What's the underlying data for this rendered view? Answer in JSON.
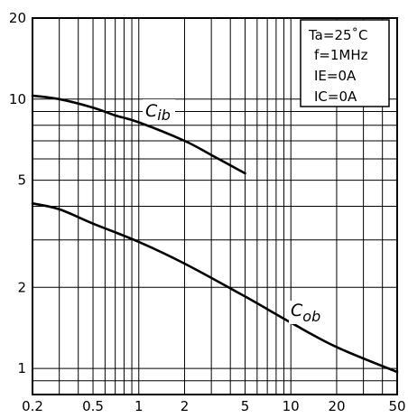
{
  "chart_data": {
    "type": "line",
    "x_scale": "log",
    "y_scale": "log",
    "xlim": [
      0.2,
      50
    ],
    "ylim": [
      0.8,
      20
    ],
    "x_tick_labels": [
      "0.2",
      "0.5",
      "1",
      "2",
      "5",
      "10",
      "20",
      "50"
    ],
    "y_tick_labels": [
      "1",
      "2",
      "5",
      "10",
      "20"
    ],
    "grid": true,
    "conditions": [
      "Ta=25˚C",
      "f=1MHz",
      "IE=0A",
      "IC=0A"
    ],
    "series": [
      {
        "name": "Cib",
        "label_main": "C",
        "label_sub": "ib",
        "x": [
          0.2,
          0.3,
          0.5,
          0.7,
          1,
          2,
          3,
          5
        ],
        "y": [
          10.3,
          10.0,
          9.3,
          8.7,
          8.2,
          7.0,
          6.2,
          5.3
        ]
      },
      {
        "name": "Cob",
        "label_main": "C",
        "label_sub": "ob",
        "x": [
          0.2,
          0.3,
          0.5,
          1,
          2,
          5,
          10,
          20,
          50
        ],
        "y": [
          4.1,
          3.9,
          3.45,
          2.95,
          2.45,
          1.85,
          1.48,
          1.2,
          0.97
        ]
      }
    ]
  }
}
